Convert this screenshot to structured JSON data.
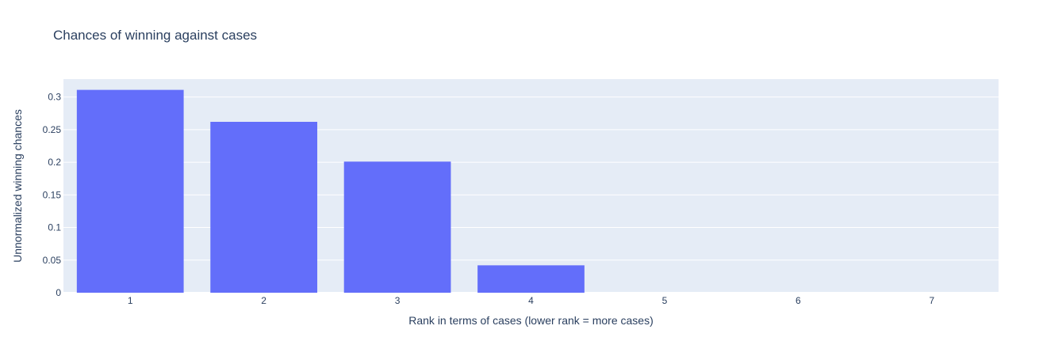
{
  "chart_data": {
    "type": "bar",
    "title": "Chances of winning against cases",
    "xlabel": "Rank in terms of cases (lower rank = more cases)",
    "ylabel": "Unnormalized winning chances",
    "categories": [
      "1",
      "2",
      "3",
      "4",
      "5",
      "6",
      "7"
    ],
    "values": [
      0.311,
      0.262,
      0.201,
      0.042,
      0,
      0,
      0
    ],
    "ylim": [
      0,
      0.3275
    ],
    "yticks": [
      0,
      0.05,
      0.1,
      0.15,
      0.2,
      0.25,
      0.3
    ],
    "ytick_labels": [
      "0",
      "0.05",
      "0.1",
      "0.15",
      "0.2",
      "0.25",
      "0.3"
    ],
    "grid": true,
    "colors": {
      "bar": "#636efa",
      "plot_background": "#e5ecf6",
      "grid": "#ffffff",
      "text": "#2a3f5f"
    }
  }
}
